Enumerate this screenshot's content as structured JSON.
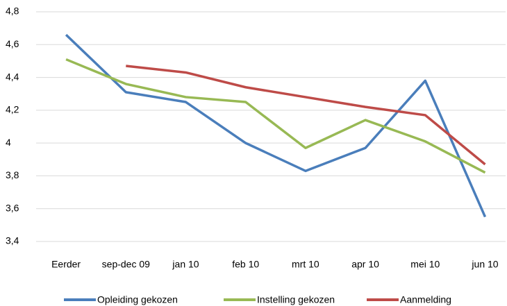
{
  "chart_data": {
    "type": "line",
    "categories": [
      "Eerder",
      "sep-dec 09",
      "jan 10",
      "feb 10",
      "mrt 10",
      "apr 10",
      "mei 10",
      "jun 10"
    ],
    "series": [
      {
        "name": "Opleiding gekozen",
        "color": "#4a7ebb",
        "values": [
          4.66,
          4.31,
          4.25,
          4.0,
          3.83,
          3.97,
          4.38,
          3.55
        ]
      },
      {
        "name": "Instelling gekozen",
        "color": "#98b954",
        "values": [
          4.51,
          4.36,
          4.28,
          4.25,
          3.97,
          4.14,
          4.01,
          3.82
        ]
      },
      {
        "name": "Aanmelding",
        "color": "#be4b48",
        "values": [
          null,
          4.47,
          4.43,
          4.34,
          4.28,
          4.22,
          4.17,
          3.87
        ]
      }
    ],
    "ylim": [
      3.4,
      4.8
    ],
    "yticks": [
      {
        "value": 3.4,
        "label": "3,4"
      },
      {
        "value": 3.6,
        "label": "3,6"
      },
      {
        "value": 3.8,
        "label": "3,8"
      },
      4,
      {
        "value": 4.2,
        "label": "4,2"
      },
      {
        "value": 4.4,
        "label": "4,4"
      },
      {
        "value": 4.6,
        "label": "4,6"
      },
      {
        "value": 4.8,
        "label": "4,8"
      }
    ],
    "grid": true,
    "legend": "bottom"
  }
}
